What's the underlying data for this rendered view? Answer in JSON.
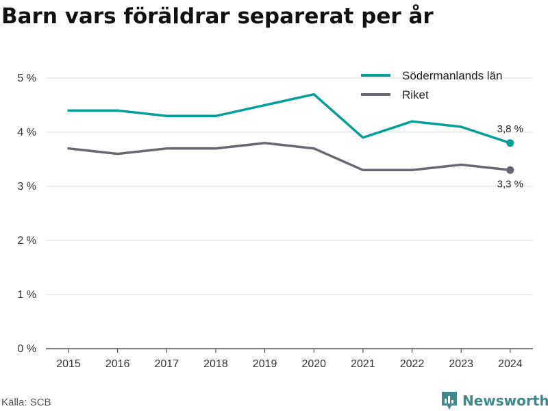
{
  "title": "Barn vars föräldrar separerat per år",
  "source": "Källa: SCB",
  "brand": {
    "name": "Newsworthy",
    "icon": "newsworthy-logo-icon"
  },
  "colors": {
    "sodermanland": "#009f9a",
    "riket": "#686870",
    "grid": "#dddddd",
    "axis": "#333333",
    "brand": "#3e8a8a"
  },
  "chart_data": {
    "type": "line",
    "title": "Barn vars föräldrar separerat per år",
    "xlabel": "",
    "ylabel": "",
    "x": [
      "2015",
      "2016",
      "2017",
      "2018",
      "2019",
      "2020",
      "2021",
      "2022",
      "2023",
      "2024"
    ],
    "ylim": [
      0,
      5
    ],
    "yticks": [
      0,
      1,
      2,
      3,
      4,
      5
    ],
    "ytick_labels": [
      "0 %",
      "1 %",
      "2 %",
      "3 %",
      "4 %",
      "5 %"
    ],
    "grid": true,
    "legend_position": "top-right",
    "series": [
      {
        "name": "Södermanlands län",
        "color": "#009f9a",
        "values": [
          4.4,
          4.4,
          4.3,
          4.3,
          4.5,
          4.7,
          3.9,
          4.2,
          4.1,
          3.8
        ],
        "end_label": "3,8 %"
      },
      {
        "name": "Riket",
        "color": "#686870",
        "values": [
          3.7,
          3.6,
          3.7,
          3.7,
          3.8,
          3.7,
          3.3,
          3.3,
          3.4,
          3.3
        ],
        "end_label": "3,3 %"
      }
    ]
  }
}
